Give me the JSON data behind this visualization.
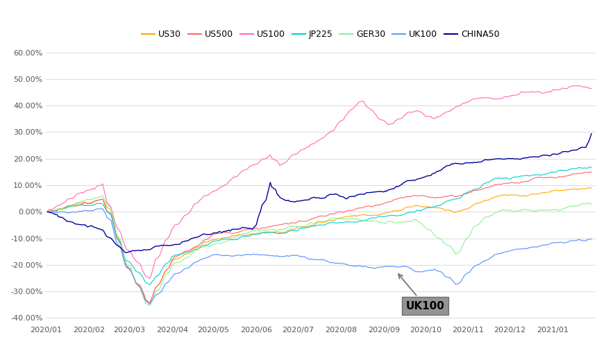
{
  "title": "",
  "series": [
    "US30",
    "US500",
    "US100",
    "JP225",
    "GER30",
    "UK100",
    "CHINA50"
  ],
  "colors": {
    "US30": "#FFA500",
    "US500": "#FF6666",
    "US100": "#FF69B4",
    "JP225": "#00CED1",
    "GER30": "#90EE90",
    "UK100": "#6699FF",
    "CHINA50": "#000099"
  },
  "linewidths": {
    "US30": 0.8,
    "US500": 0.8,
    "US100": 0.8,
    "JP225": 0.8,
    "GER30": 0.8,
    "UK100": 0.9,
    "CHINA50": 1.0
  },
  "ylim": [
    -0.42,
    0.63
  ],
  "yticks": [
    -0.4,
    -0.3,
    -0.2,
    -0.1,
    0.0,
    0.1,
    0.2,
    0.3,
    0.4,
    0.5,
    0.6
  ],
  "bg_color": "#ffffff",
  "grid_color": "#dddddd",
  "figsize": [
    8.73,
    4.96
  ],
  "dpi": 100,
  "annotation_text": "UK100"
}
